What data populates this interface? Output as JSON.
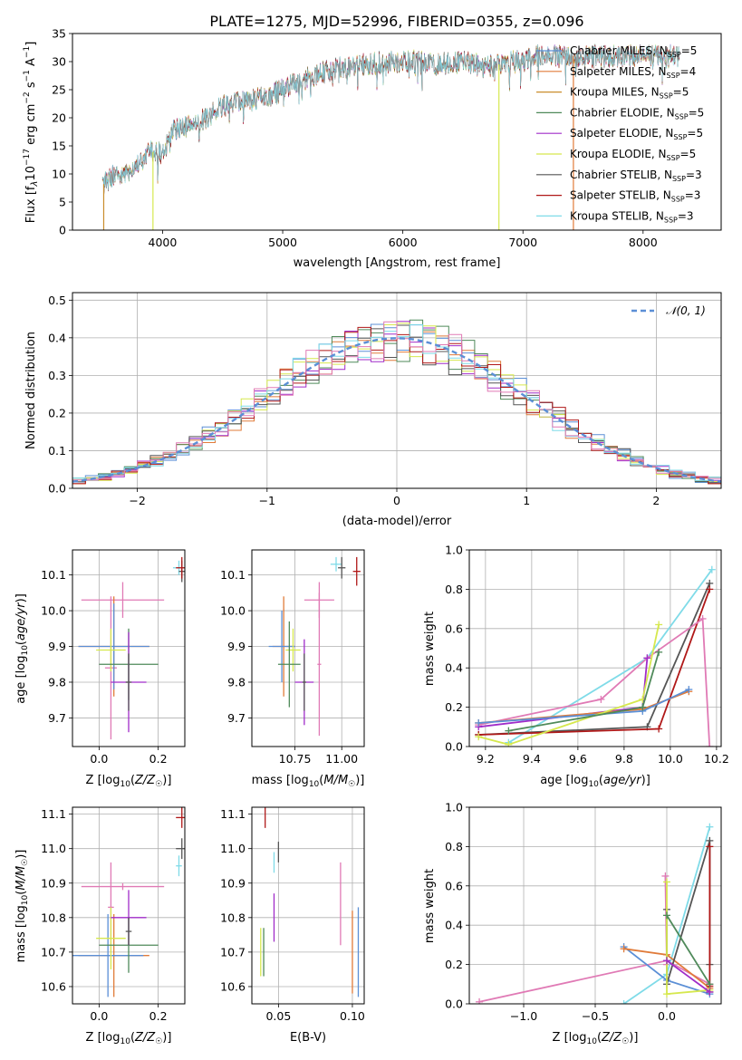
{
  "chart_data": [
    {
      "type": "line",
      "title": "PLATE=1275, MJD=52996, FIBERID=0355, z=0.096",
      "xlabel": "wavelength [Angstrom, rest frame]",
      "ylabel": "Flux [f_λ10^-17 erg cm^-2 s^-1 A^-1]",
      "xlim": [
        3250,
        8650
      ],
      "ylim": [
        0,
        35
      ],
      "xticks": [
        4000,
        5000,
        6000,
        7000,
        8000
      ],
      "yticks": [
        0,
        5,
        10,
        15,
        20,
        25,
        30,
        35
      ],
      "legend_position": "right",
      "spectrum_range": [
        3500,
        8300
      ],
      "spectrum_shape": {
        "x": [
          3500,
          3600,
          3700,
          3800,
          3900,
          4000,
          4100,
          4300,
          4500,
          4700,
          4900,
          5100,
          5300,
          5500,
          5700,
          5900,
          6100,
          6300,
          6500,
          6700,
          6900,
          7100,
          7300,
          7500,
          7800,
          8000,
          8300
        ],
        "y": [
          8,
          10,
          10,
          12,
          14,
          13.5,
          18,
          19,
          22,
          23,
          24,
          26,
          28,
          29,
          29.5,
          30,
          30,
          29.5,
          30,
          29,
          30,
          31,
          31,
          31,
          31,
          31,
          31
        ]
      },
      "dropouts": [
        {
          "x": 3510,
          "model": "Kroupa MILES"
        },
        {
          "x": 3920,
          "model": "Kroupa ELODIE"
        },
        {
          "x": 6800,
          "model": "Kroupa ELODIE"
        },
        {
          "x": 7420,
          "model": "Salpeter MILES"
        }
      ],
      "models": [
        {
          "name": "Chabrier MILES",
          "nssp": "5",
          "color": "#5b8fd6"
        },
        {
          "name": "Salpeter MILES",
          "nssp": "4",
          "color": "#e07b3a"
        },
        {
          "name": "Kroupa MILES",
          "nssp": "5",
          "color": "#c98d2c"
        },
        {
          "name": "Chabrier ELODIE",
          "nssp": "5",
          "color": "#4f8a5a"
        },
        {
          "name": "Salpeter ELODIE",
          "nssp": "5",
          "color": "#a02cc9"
        },
        {
          "name": "Kroupa ELODIE",
          "nssp": "5",
          "color": "#d6e84e"
        },
        {
          "name": "Chabrier STELIB",
          "nssp": "3",
          "color": "#555555"
        },
        {
          "name": "Salpeter STELIB",
          "nssp": "3",
          "color": "#b01818"
        },
        {
          "name": "Kroupa STELIB",
          "nssp": "3",
          "color": "#7fdbe8"
        }
      ]
    },
    {
      "type": "line",
      "xlabel": "(data-model)/error",
      "ylabel": "Normed distribution",
      "xlim": [
        -2.5,
        2.5
      ],
      "ylim": [
        0,
        0.52
      ],
      "xticks": [
        -2,
        -1,
        0,
        1,
        2
      ],
      "yticks": [
        0.0,
        0.1,
        0.2,
        0.3,
        0.4,
        0.5
      ],
      "grid": true,
      "legend": "N(0,1)",
      "legend_position": "top-right",
      "gaussian": {
        "mu": 0,
        "sigma": 1,
        "color": "#5b8fd6"
      },
      "histogram_bins": [
        -2.5,
        2.5,
        0.1
      ],
      "histograms": [
        {
          "color": "#5b8fd6",
          "seed": 1
        },
        {
          "color": "#e07b3a",
          "seed": 2
        },
        {
          "color": "#4f8a5a",
          "seed": 3
        },
        {
          "color": "#a02cc9",
          "seed": 4
        },
        {
          "color": "#d6e84e",
          "seed": 5
        },
        {
          "color": "#555555",
          "seed": 6
        },
        {
          "color": "#b01818",
          "seed": 7
        },
        {
          "color": "#7fdbe8",
          "seed": 8
        },
        {
          "color": "#e07ab5",
          "seed": 9
        }
      ]
    },
    {
      "type": "scatter",
      "xlabel": "Z [log10(Z/Z☉)]",
      "ylabel": "age  [log10(age/yr)]",
      "xlim": [
        -0.09,
        0.29
      ],
      "ylim": [
        9.62,
        10.17
      ],
      "xticks": [
        0.0,
        0.2
      ],
      "yticks": [
        9.7,
        9.8,
        9.9,
        10.0,
        10.1
      ],
      "grid": true,
      "points": [
        {
          "x": 0.27,
          "y": 10.12,
          "xerr": 0.02,
          "yerr": 0.02,
          "color": "#7fdbe8"
        },
        {
          "x": 0.28,
          "y": 10.11,
          "xerr": 0.01,
          "yerr": 0.03,
          "color": "#555555"
        },
        {
          "x": 0.28,
          "y": 10.12,
          "xerr": 0.02,
          "yerr": 0.03,
          "color": "#b01818"
        },
        {
          "x": 0.08,
          "y": 10.03,
          "xerr": 0.14,
          "yerr": 0.05,
          "color": "#e07ab5"
        },
        {
          "x": 0.04,
          "y": 9.84,
          "xerr": 0.02,
          "yerr": 0.2,
          "color": "#e07ab5"
        },
        {
          "x": 0.05,
          "y": 9.9,
          "xerr": 0.12,
          "yerr": 0.14,
          "color": "#e07b3a"
        },
        {
          "x": 0.05,
          "y": 9.9,
          "xerr": 0.12,
          "yerr": 0.12,
          "color": "#5b8fd6"
        },
        {
          "x": 0.04,
          "y": 9.89,
          "xerr": 0.05,
          "yerr": 0.06,
          "color": "#d6e84e"
        },
        {
          "x": 0.1,
          "y": 9.85,
          "xerr": 0.1,
          "yerr": 0.1,
          "color": "#4f8a5a"
        },
        {
          "x": 0.1,
          "y": 9.8,
          "xerr": 0.06,
          "yerr": 0.14,
          "color": "#a02cc9"
        },
        {
          "x": 0.1,
          "y": 9.8,
          "xerr": 0.01,
          "yerr": 0.08,
          "color": "#555555"
        }
      ]
    },
    {
      "type": "scatter",
      "xlabel": "mass [log10(M/M☉)]",
      "xlim": [
        10.52,
        11.12
      ],
      "ylim": [
        9.62,
        10.17
      ],
      "xticks": [
        10.75,
        11.0
      ],
      "yticks": [
        9.7,
        9.8,
        9.9,
        10.0,
        10.1
      ],
      "grid": true,
      "points": [
        {
          "x": 10.97,
          "y": 10.13,
          "xerr": 0.03,
          "yerr": 0.02,
          "color": "#7fdbe8"
        },
        {
          "x": 11.0,
          "y": 10.12,
          "xerr": 0.02,
          "yerr": 0.03,
          "color": "#555555"
        },
        {
          "x": 11.08,
          "y": 10.11,
          "xerr": 0.02,
          "yerr": 0.04,
          "color": "#b01818"
        },
        {
          "x": 10.88,
          "y": 10.03,
          "xerr": 0.08,
          "yerr": 0.05,
          "color": "#e07ab5"
        },
        {
          "x": 10.88,
          "y": 9.85,
          "xerr": 0.01,
          "yerr": 0.2,
          "color": "#e07ab5"
        },
        {
          "x": 10.69,
          "y": 9.9,
          "xerr": 0.06,
          "yerr": 0.14,
          "color": "#e07b3a"
        },
        {
          "x": 10.68,
          "y": 9.9,
          "xerr": 0.07,
          "yerr": 0.1,
          "color": "#5b8fd6"
        },
        {
          "x": 10.74,
          "y": 9.89,
          "xerr": 0.04,
          "yerr": 0.06,
          "color": "#d6e84e"
        },
        {
          "x": 10.72,
          "y": 9.85,
          "xerr": 0.06,
          "yerr": 0.12,
          "color": "#4f8a5a"
        },
        {
          "x": 10.8,
          "y": 9.8,
          "xerr": 0.05,
          "yerr": 0.12,
          "color": "#a02cc9"
        },
        {
          "x": 10.8,
          "y": 9.8,
          "xerr": 0.01,
          "yerr": 0.08,
          "color": "#555555"
        }
      ]
    },
    {
      "type": "line",
      "xlabel": "age  [log10(age/yr)]",
      "ylabel": "mass weight",
      "xlim": [
        9.13,
        10.22
      ],
      "ylim": [
        0,
        1.0
      ],
      "xticks": [
        9.2,
        9.4,
        9.6,
        9.8,
        10.0,
        10.2
      ],
      "yticks": [
        0.0,
        0.2,
        0.4,
        0.6,
        0.8,
        1.0
      ],
      "grid": true,
      "series": [
        {
          "color": "#7fdbe8",
          "x": [
            9.3,
            9.9,
            10.18
          ],
          "y": [
            0.02,
            0.45,
            0.9
          ]
        },
        {
          "color": "#555555",
          "x": [
            9.17,
            9.9,
            10.17
          ],
          "y": [
            0.06,
            0.1,
            0.83
          ]
        },
        {
          "color": "#b01818",
          "x": [
            9.17,
            9.95,
            10.17
          ],
          "y": [
            0.06,
            0.09,
            0.8
          ]
        },
        {
          "color": "#e07ab5",
          "x": [
            9.17,
            9.7,
            9.9,
            10.14,
            10.17
          ],
          "y": [
            0.11,
            0.24,
            0.45,
            0.65,
            0.0
          ]
        },
        {
          "color": "#a02cc9",
          "x": [
            9.17,
            9.88,
            9.9
          ],
          "y": [
            0.1,
            0.2,
            0.45
          ]
        },
        {
          "color": "#e07b3a",
          "x": [
            9.17,
            9.88,
            10.08
          ],
          "y": [
            0.12,
            0.19,
            0.28
          ]
        },
        {
          "color": "#5b8fd6",
          "x": [
            9.17,
            9.88,
            10.08
          ],
          "y": [
            0.12,
            0.18,
            0.29
          ]
        },
        {
          "color": "#d6e84e",
          "x": [
            9.17,
            9.3,
            9.88,
            9.95
          ],
          "y": [
            0.05,
            0.01,
            0.24,
            0.62
          ]
        },
        {
          "color": "#4f8a5a",
          "x": [
            9.3,
            9.88,
            9.95
          ],
          "y": [
            0.08,
            0.2,
            0.48
          ]
        }
      ]
    },
    {
      "type": "scatter",
      "xlabel": "Z [log10(Z/Z☉)]",
      "ylabel": "mass [log10(M/M☉)]",
      "xlim": [
        -0.09,
        0.29
      ],
      "ylim": [
        10.55,
        11.12
      ],
      "xticks": [
        0.0,
        0.2
      ],
      "yticks": [
        10.6,
        10.7,
        10.8,
        10.9,
        11.0,
        11.1
      ],
      "grid": true,
      "points": [
        {
          "x": 0.27,
          "y": 10.95,
          "xerr": 0.01,
          "yerr": 0.03,
          "color": "#7fdbe8"
        },
        {
          "x": 0.28,
          "y": 11.0,
          "xerr": 0.02,
          "yerr": 0.03,
          "color": "#555555"
        },
        {
          "x": 0.28,
          "y": 11.09,
          "xerr": 0.02,
          "yerr": 0.03,
          "color": "#b01818"
        },
        {
          "x": 0.08,
          "y": 10.89,
          "xerr": 0.14,
          "yerr": 0.01,
          "color": "#e07ab5"
        },
        {
          "x": 0.04,
          "y": 10.83,
          "xerr": 0.01,
          "yerr": 0.13,
          "color": "#e07ab5"
        },
        {
          "x": 0.05,
          "y": 10.69,
          "xerr": 0.12,
          "yerr": 0.12,
          "color": "#e07b3a"
        },
        {
          "x": 0.03,
          "y": 10.69,
          "xerr": 0.12,
          "yerr": 0.12,
          "color": "#5b8fd6"
        },
        {
          "x": 0.04,
          "y": 10.74,
          "xerr": 0.05,
          "yerr": 0.09,
          "color": "#d6e84e"
        },
        {
          "x": 0.1,
          "y": 10.72,
          "xerr": 0.1,
          "yerr": 0.08,
          "color": "#4f8a5a"
        },
        {
          "x": 0.1,
          "y": 10.8,
          "xerr": 0.06,
          "yerr": 0.08,
          "color": "#a02cc9"
        },
        {
          "x": 0.1,
          "y": 10.76,
          "xerr": 0.01,
          "yerr": 0.04,
          "color": "#555555"
        }
      ]
    },
    {
      "type": "scatter",
      "xlabel": "E(B-V)",
      "xlim": [
        0.032,
        0.108
      ],
      "ylim": [
        10.55,
        11.12
      ],
      "xticks": [
        0.05,
        0.1
      ],
      "yticks": [
        10.6,
        10.7,
        10.8,
        10.9,
        11.0,
        11.1
      ],
      "grid": true,
      "points": [
        {
          "x": 0.041,
          "y": 11.09,
          "yerr": 0.03,
          "color": "#b01818"
        },
        {
          "x": 0.05,
          "y": 10.99,
          "yerr": 0.03,
          "color": "#555555"
        },
        {
          "x": 0.047,
          "y": 10.96,
          "yerr": 0.03,
          "color": "#7fdbe8"
        },
        {
          "x": 0.047,
          "y": 10.8,
          "yerr": 0.07,
          "color": "#a02cc9"
        },
        {
          "x": 0.04,
          "y": 10.7,
          "yerr": 0.07,
          "color": "#4f8a5a"
        },
        {
          "x": 0.038,
          "y": 10.7,
          "yerr": 0.07,
          "color": "#d6e84e"
        },
        {
          "x": 0.092,
          "y": 10.84,
          "yerr": 0.12,
          "color": "#e07ab5"
        },
        {
          "x": 0.1,
          "y": 10.7,
          "yerr": 0.12,
          "color": "#e07b3a"
        },
        {
          "x": 0.104,
          "y": 10.7,
          "yerr": 0.13,
          "color": "#5b8fd6"
        }
      ]
    },
    {
      "type": "line",
      "xlabel": "Z [log10(Z/Z☉)]",
      "ylabel": "mass weight",
      "xlim": [
        -1.38,
        0.38
      ],
      "ylim": [
        0,
        1.0
      ],
      "xticks": [
        -1.0,
        -0.5,
        0.0
      ],
      "yticks": [
        0.0,
        0.2,
        0.4,
        0.6,
        0.8,
        1.0
      ],
      "grid": true,
      "series": [
        {
          "color": "#e07ab5",
          "x": [
            -1.31,
            0.0,
            0.3
          ],
          "y": [
            0.01,
            0.22,
            0.1
          ]
        },
        {
          "color": "#e07ab5",
          "x": [
            -0.01,
            0.0
          ],
          "y": [
            0.65,
            0.2
          ]
        },
        {
          "color": "#7fdbe8",
          "x": [
            -0.3,
            0.0,
            0.3
          ],
          "y": [
            0.0,
            0.15,
            0.9
          ]
        },
        {
          "color": "#5b8fd6",
          "x": [
            -0.3,
            0.0,
            0.3
          ],
          "y": [
            0.29,
            0.12,
            0.05
          ]
        },
        {
          "color": "#e07b3a",
          "x": [
            -0.3,
            0.0,
            0.3
          ],
          "y": [
            0.28,
            0.25,
            0.08
          ]
        },
        {
          "color": "#555555",
          "x": [
            0.0,
            0.0,
            0.3,
            0.3
          ],
          "y": [
            0.48,
            0.1,
            0.83,
            0.2
          ]
        },
        {
          "color": "#b01818",
          "x": [
            0.3,
            0.3,
            0.3
          ],
          "y": [
            0.8,
            0.09,
            0.06
          ]
        },
        {
          "color": "#d6e84e",
          "x": [
            0.0,
            0.0,
            0.3
          ],
          "y": [
            0.62,
            0.05,
            0.07
          ]
        },
        {
          "color": "#a02cc9",
          "x": [
            0.0,
            0.3
          ],
          "y": [
            0.22,
            0.06
          ]
        },
        {
          "color": "#4f8a5a",
          "x": [
            0.0,
            0.3
          ],
          "y": [
            0.45,
            0.1
          ]
        }
      ]
    }
  ]
}
